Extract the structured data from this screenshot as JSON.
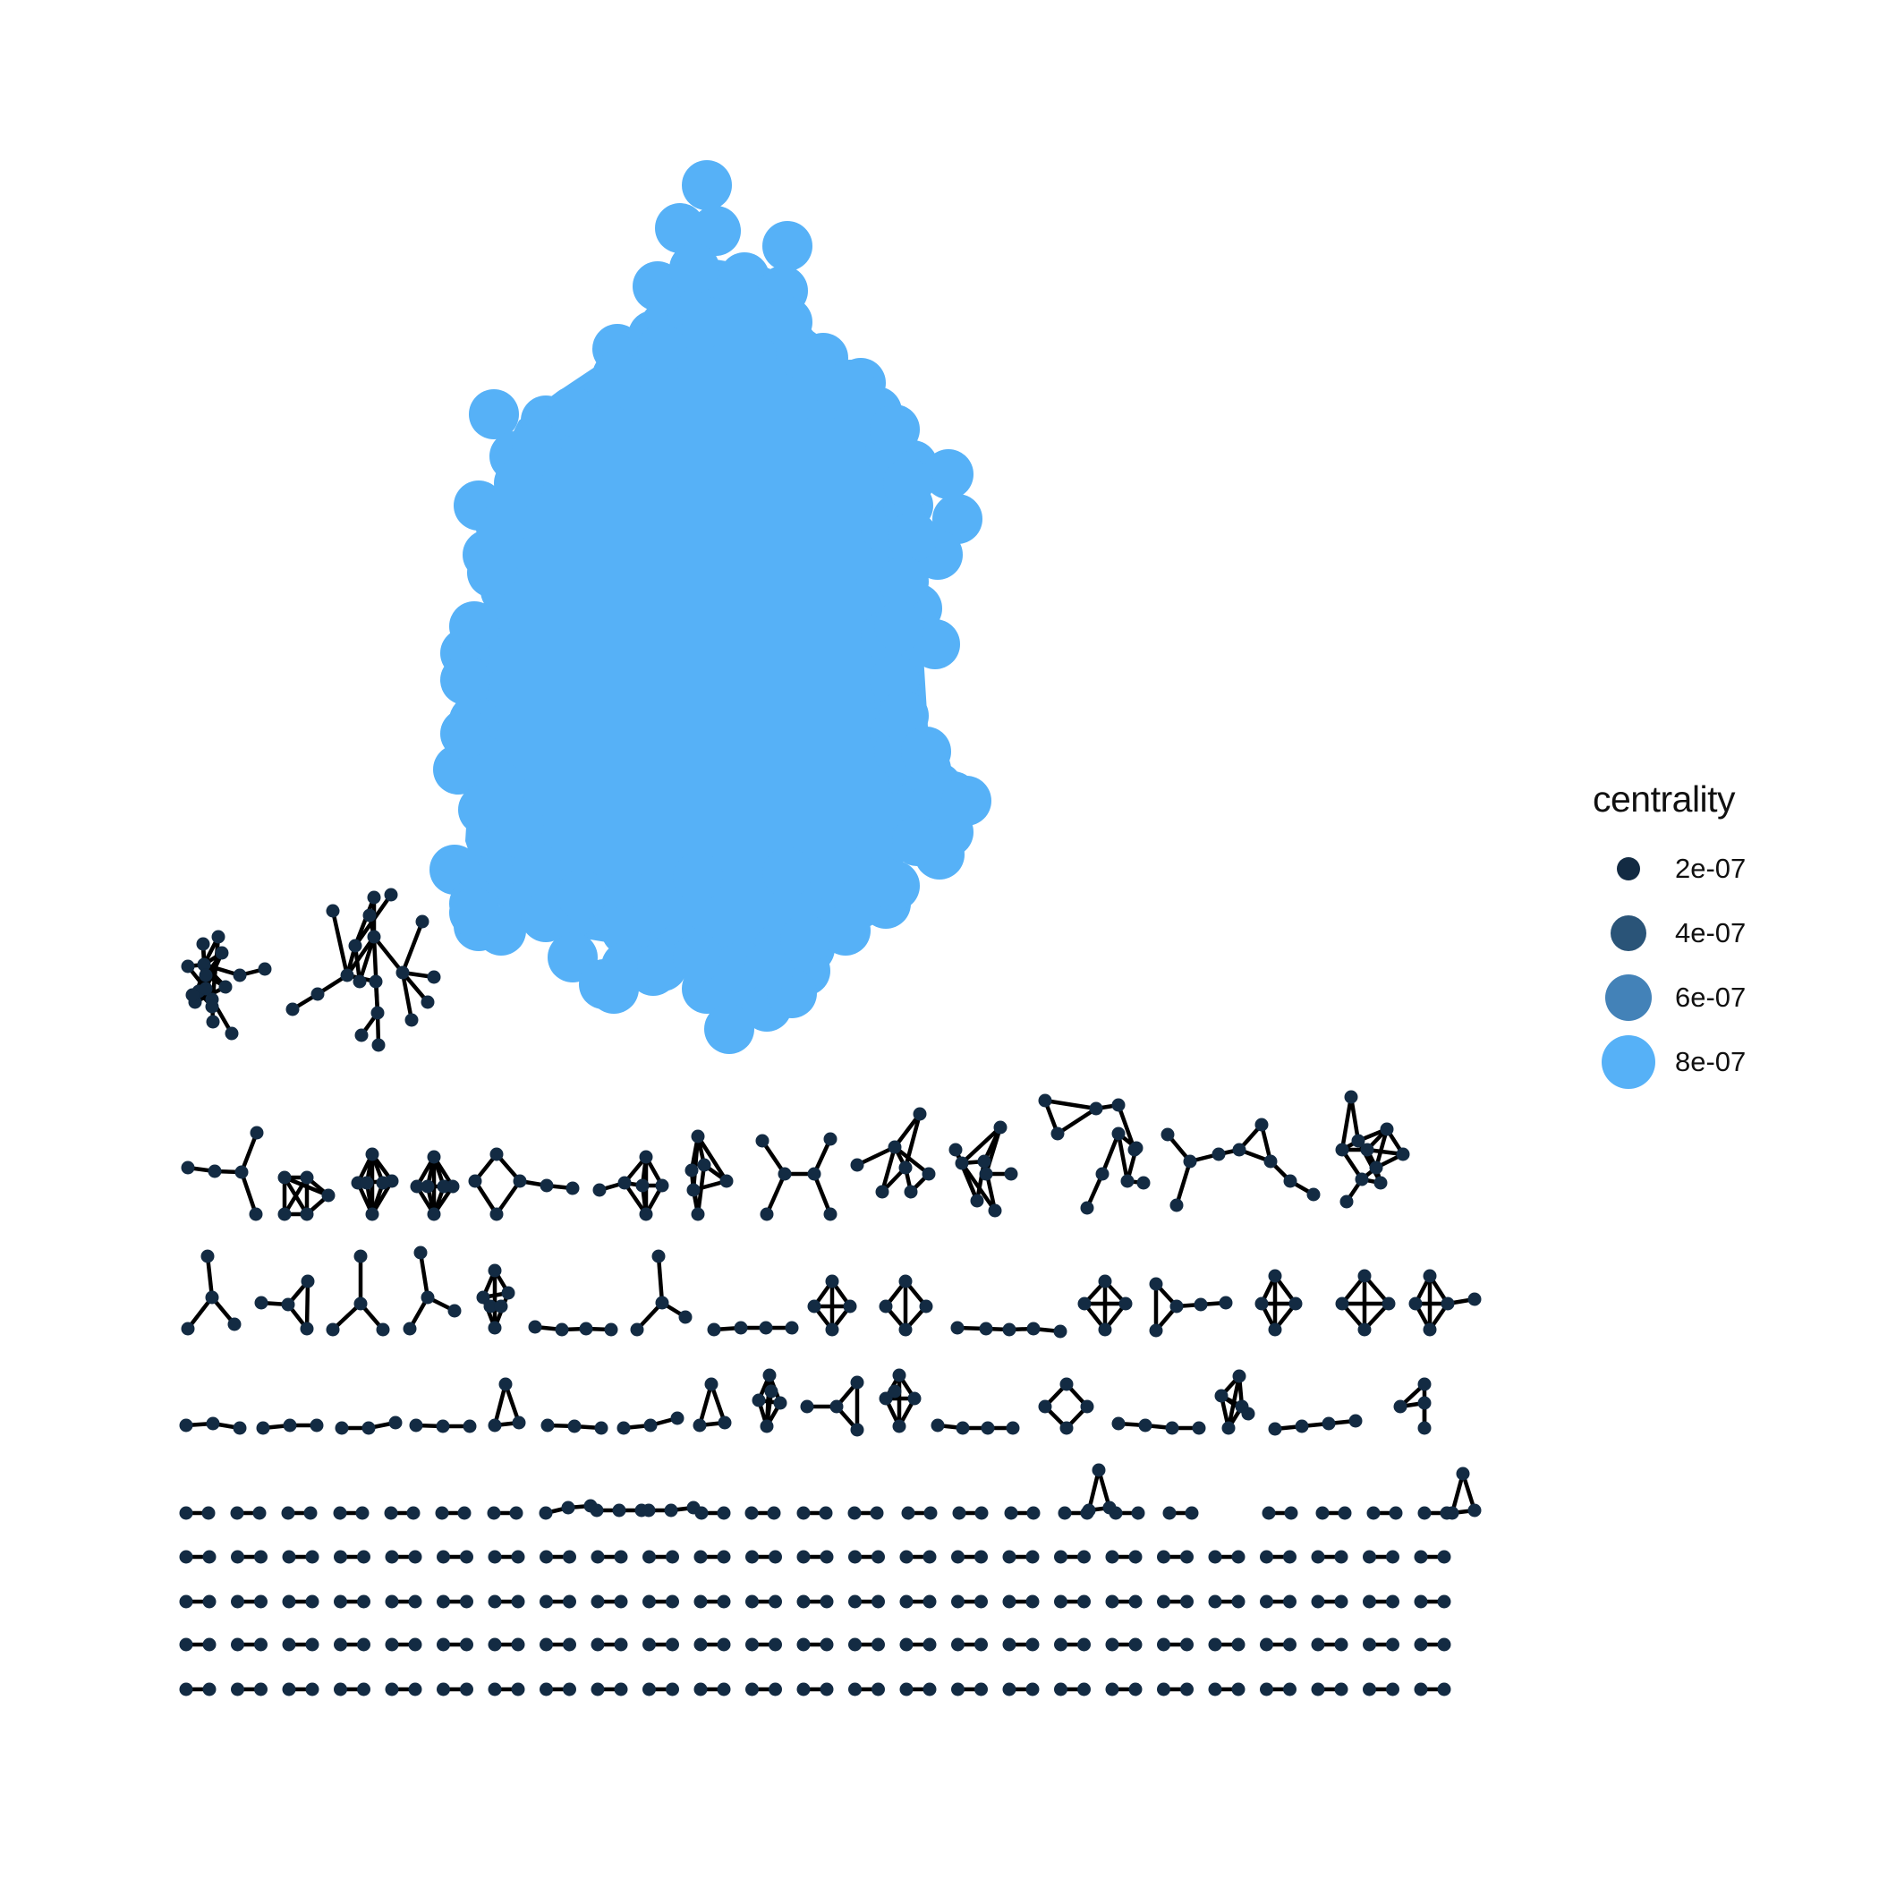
{
  "legend": {
    "title": "centrality",
    "items": [
      {
        "label": "2e-07",
        "value": 2e-07,
        "color": "#132b43"
      },
      {
        "label": "4e-07",
        "value": 4e-07,
        "color": "#2a5478"
      },
      {
        "label": "6e-07",
        "value": 6e-07,
        "color": "#4382b8"
      },
      {
        "label": "8e-07",
        "value": 8e-07,
        "color": "#56b1f7"
      }
    ]
  },
  "colors": {
    "giant_component": "#56b1f7",
    "small_nodes": "#132b43",
    "edges": "#000000"
  }
}
